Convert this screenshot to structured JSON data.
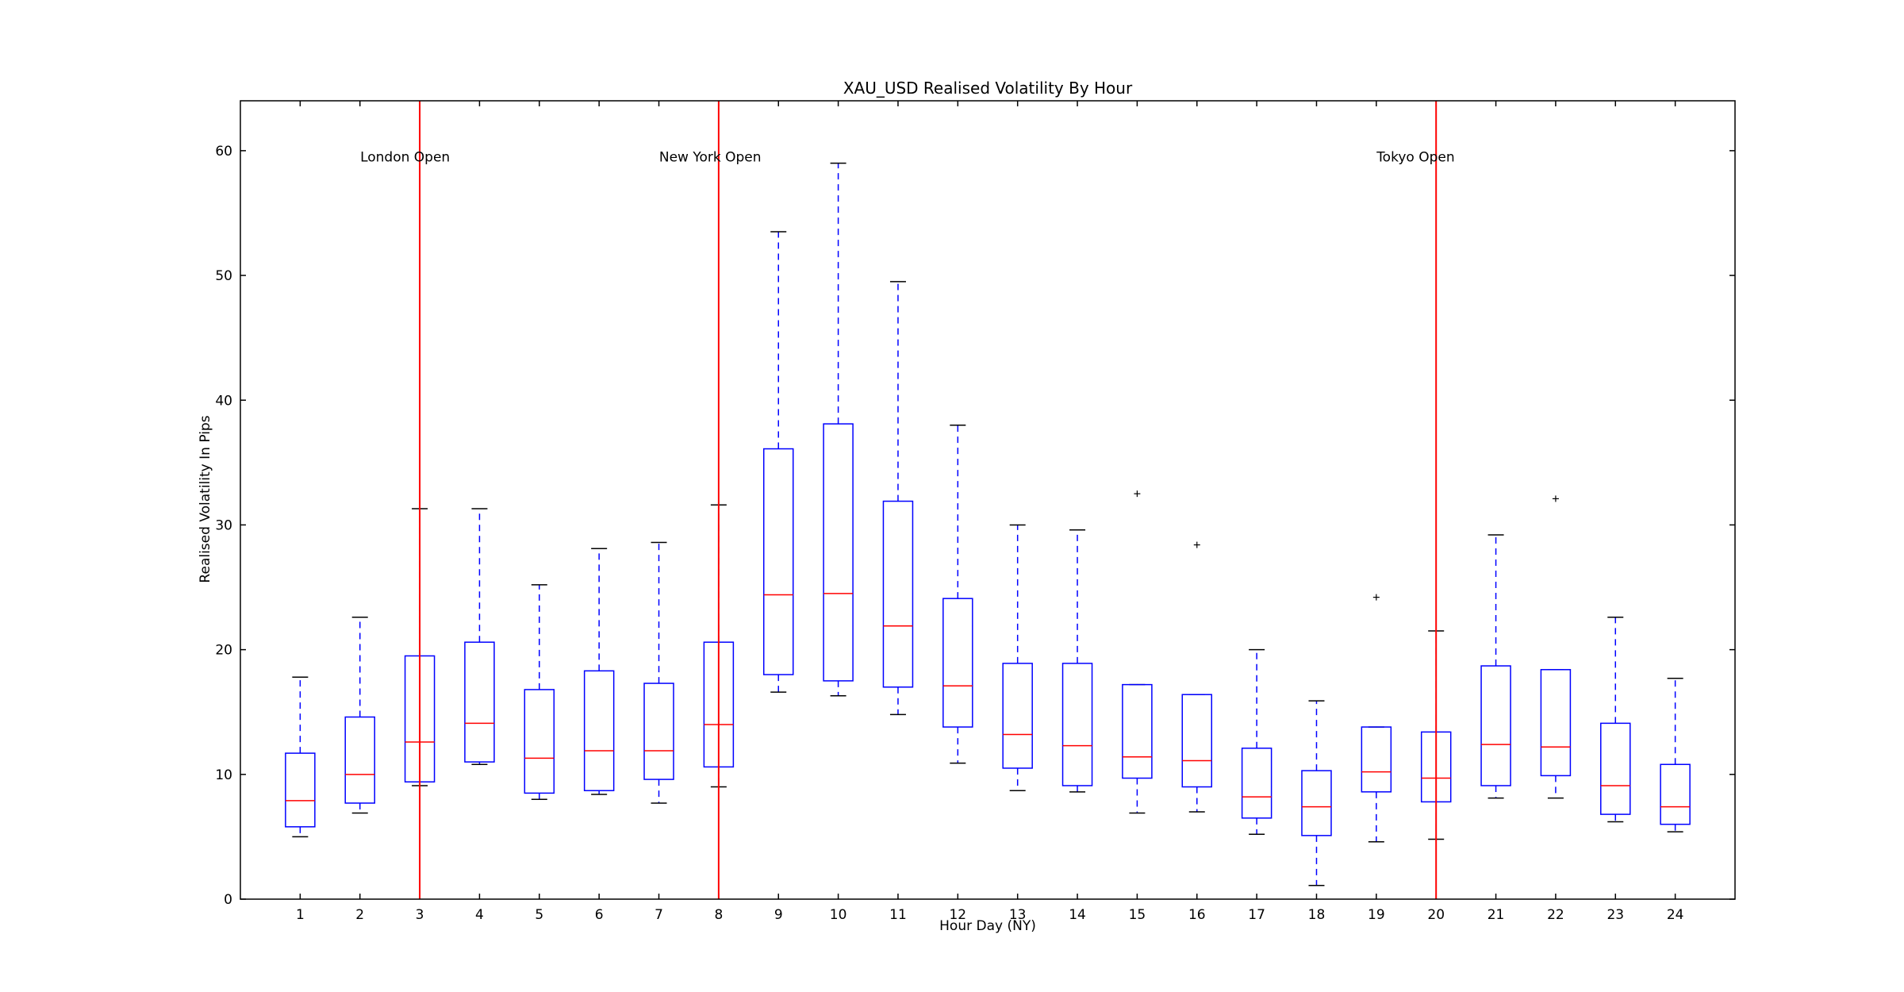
{
  "chart_data": {
    "type": "box",
    "title": "XAU_USD Realised Volatility By Hour",
    "xlabel": "Hour Day (NY)",
    "ylabel": "Realised Volatility In Pips",
    "ylim": [
      0,
      64
    ],
    "yticks": [
      0,
      10,
      20,
      30,
      40,
      50,
      60
    ],
    "categories": [
      "1",
      "2",
      "3",
      "4",
      "5",
      "6",
      "7",
      "8",
      "9",
      "10",
      "11",
      "12",
      "13",
      "14",
      "15",
      "16",
      "17",
      "18",
      "19",
      "20",
      "21",
      "22",
      "23",
      "24"
    ],
    "boxes": [
      {
        "whislo": 5.0,
        "q1": 5.8,
        "med": 7.9,
        "q3": 11.7,
        "whishi": 17.8,
        "fliers": []
      },
      {
        "whislo": 6.9,
        "q1": 7.7,
        "med": 10.0,
        "q3": 14.6,
        "whishi": 22.6,
        "fliers": []
      },
      {
        "whislo": 9.1,
        "q1": 9.4,
        "med": 12.6,
        "q3": 19.5,
        "whishi": 31.3,
        "fliers": []
      },
      {
        "whislo": 10.8,
        "q1": 11.0,
        "med": 14.1,
        "q3": 20.6,
        "whishi": 31.3,
        "fliers": []
      },
      {
        "whislo": 8.0,
        "q1": 8.5,
        "med": 11.3,
        "q3": 16.8,
        "whishi": 25.2,
        "fliers": []
      },
      {
        "whislo": 8.4,
        "q1": 8.7,
        "med": 11.9,
        "q3": 18.3,
        "whishi": 28.1,
        "fliers": []
      },
      {
        "whislo": 7.7,
        "q1": 9.6,
        "med": 11.9,
        "q3": 17.3,
        "whishi": 28.6,
        "fliers": []
      },
      {
        "whislo": 9.0,
        "q1": 10.6,
        "med": 14.0,
        "q3": 20.6,
        "whishi": 31.6,
        "fliers": []
      },
      {
        "whislo": 16.6,
        "q1": 18.0,
        "med": 24.4,
        "q3": 36.1,
        "whishi": 53.5,
        "fliers": []
      },
      {
        "whislo": 16.3,
        "q1": 17.5,
        "med": 24.5,
        "q3": 38.1,
        "whishi": 59.0,
        "fliers": []
      },
      {
        "whislo": 14.8,
        "q1": 17.0,
        "med": 21.9,
        "q3": 31.9,
        "whishi": 49.5,
        "fliers": []
      },
      {
        "whislo": 10.9,
        "q1": 13.8,
        "med": 17.1,
        "q3": 24.1,
        "whishi": 38.0,
        "fliers": []
      },
      {
        "whislo": 8.7,
        "q1": 10.5,
        "med": 13.2,
        "q3": 18.9,
        "whishi": 30.0,
        "fliers": []
      },
      {
        "whislo": 8.6,
        "q1": 9.1,
        "med": 12.3,
        "q3": 18.9,
        "whishi": 29.6,
        "fliers": []
      },
      {
        "whislo": 6.9,
        "q1": 9.7,
        "med": 11.4,
        "q3": 17.2,
        "whishi": 17.2,
        "fliers": [
          32.5
        ]
      },
      {
        "whislo": 7.0,
        "q1": 9.0,
        "med": 11.1,
        "q3": 16.4,
        "whishi": 16.4,
        "fliers": [
          28.4
        ]
      },
      {
        "whislo": 5.2,
        "q1": 6.5,
        "med": 8.2,
        "q3": 12.1,
        "whishi": 20.0,
        "fliers": []
      },
      {
        "whislo": 1.1,
        "q1": 5.1,
        "med": 7.4,
        "q3": 10.3,
        "whishi": 15.9,
        "fliers": []
      },
      {
        "whislo": 4.6,
        "q1": 8.6,
        "med": 10.2,
        "q3": 13.8,
        "whishi": 13.8,
        "fliers": [
          24.2
        ]
      },
      {
        "whislo": 4.8,
        "q1": 7.8,
        "med": 9.7,
        "q3": 13.4,
        "whishi": 21.5,
        "fliers": []
      },
      {
        "whislo": 8.1,
        "q1": 9.1,
        "med": 12.4,
        "q3": 18.7,
        "whishi": 29.2,
        "fliers": []
      },
      {
        "whislo": 8.1,
        "q1": 9.9,
        "med": 12.2,
        "q3": 18.4,
        "whishi": 18.4,
        "fliers": [
          32.1
        ]
      },
      {
        "whislo": 6.2,
        "q1": 6.8,
        "med": 9.1,
        "q3": 14.1,
        "whishi": 22.6,
        "fliers": []
      },
      {
        "whislo": 5.4,
        "q1": 6.0,
        "med": 7.4,
        "q3": 10.8,
        "whishi": 17.7,
        "fliers": []
      }
    ],
    "vlines": [
      {
        "x": 3,
        "label": "London Open"
      },
      {
        "x": 8,
        "label": "New York Open"
      },
      {
        "x": 20,
        "label": "Tokyo Open"
      }
    ],
    "annotation_y": 59.5,
    "colors": {
      "box": "#0000ff",
      "median": "#ff0000",
      "whisker": "#0000ff",
      "cap": "#000000",
      "vline": "#ff0000",
      "axes": "#000000",
      "flier": "#000000"
    },
    "grid": false
  }
}
